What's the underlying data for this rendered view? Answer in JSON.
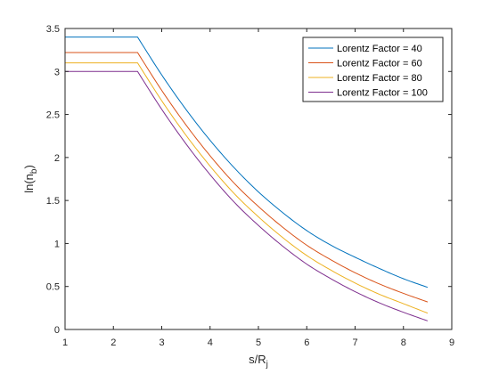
{
  "chart_data": {
    "type": "line",
    "title": "",
    "xlabel": "s/R",
    "xlabel_sub": "j",
    "ylabel": "ln(n",
    "ylabel_sub": "b",
    "ylabel_close": ")",
    "xlim": [
      1,
      9
    ],
    "ylim": [
      0,
      3.5
    ],
    "xticks": [
      1,
      2,
      3,
      4,
      5,
      6,
      7,
      8,
      9
    ],
    "yticks": [
      0,
      0.5,
      1,
      1.5,
      2,
      2.5,
      3,
      3.5
    ],
    "ytick_labels": [
      "0",
      "0.5",
      "1",
      "1.5",
      "2",
      "2.5",
      "3",
      "3.5"
    ],
    "grid": false,
    "legend_position": "top-right",
    "x": [
      1,
      2.5,
      3,
      3.5,
      4,
      4.5,
      5,
      5.5,
      6,
      6.5,
      7,
      7.5,
      8,
      8.5
    ],
    "series": [
      {
        "name": "Lorentz Factor = 40",
        "color": "#0072bd",
        "values": [
          3.4,
          3.4,
          2.96,
          2.56,
          2.2,
          1.88,
          1.6,
          1.36,
          1.15,
          0.98,
          0.84,
          0.71,
          0.59,
          0.49
        ]
      },
      {
        "name": "Lorentz Factor = 60",
        "color": "#d95319",
        "values": [
          3.22,
          3.22,
          2.78,
          2.38,
          2.02,
          1.7,
          1.43,
          1.19,
          0.98,
          0.81,
          0.66,
          0.53,
          0.42,
          0.32
        ]
      },
      {
        "name": "Lorentz Factor = 80",
        "color": "#edb120",
        "values": [
          3.1,
          3.1,
          2.66,
          2.26,
          1.9,
          1.58,
          1.31,
          1.07,
          0.86,
          0.69,
          0.54,
          0.41,
          0.3,
          0.19
        ]
      },
      {
        "name": "Lorentz Factor = 100",
        "color": "#7e2f8e",
        "values": [
          3.0,
          3.0,
          2.56,
          2.16,
          1.8,
          1.48,
          1.21,
          0.97,
          0.76,
          0.59,
          0.44,
          0.31,
          0.2,
          0.1
        ]
      }
    ]
  }
}
